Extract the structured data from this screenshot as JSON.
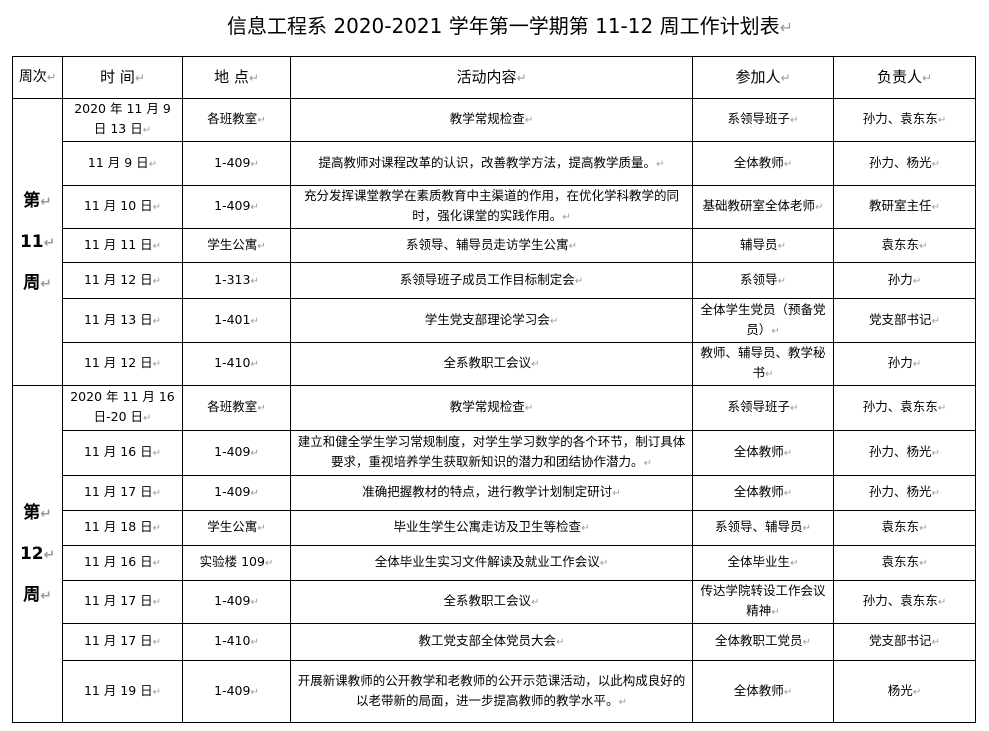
{
  "title": "信息工程系 2020-2021 学年第一学期第 11-12 周工作计划表",
  "headers": [
    "周次",
    "时 间",
    "地 点",
    "活动内容",
    "参加人",
    "负责人"
  ],
  "weeks": [
    {
      "label": [
        "第",
        "11",
        "周"
      ],
      "rows": [
        {
          "time": "2020 年 11 月 9 日 13 日",
          "place": "各班教室",
          "activity": "教学常规检查",
          "participants": "系领导班子",
          "owner": "孙力、袁东东"
        },
        {
          "time": "11 月 9 日",
          "place": "1-409",
          "activity": "提高教师对课程改革的认识，改善教学方法，提高教学质量。",
          "participants": "全体教师",
          "owner": "孙力、杨光"
        },
        {
          "time": "11 月 10 日",
          "place": "1-409",
          "activity": "充分发挥课堂教学在素质教育中主渠道的作用，在优化学科教学的同时，强化课堂的实践作用。",
          "participants": "基础教研室全体老师",
          "owner": "教研室主任"
        },
        {
          "time": "11 月 11 日",
          "place": "学生公寓",
          "activity": "系领导、辅导员走访学生公寓",
          "participants": "辅导员",
          "owner": "袁东东"
        },
        {
          "time": "11 月 12 日",
          "place": "1-313",
          "activity": "系领导班子成员工作目标制定会",
          "participants": "系领导",
          "owner": "孙力"
        },
        {
          "time": "11 月 13 日",
          "place": "1-401",
          "activity": "学生党支部理论学习会",
          "participants": "全体学生党员（预备党员）",
          "owner": "党支部书记"
        },
        {
          "time": "11 月 12 日",
          "place": "1-410",
          "activity": "全系教职工会议",
          "participants": "教师、辅导员、教学秘书",
          "owner": "孙力"
        }
      ]
    },
    {
      "label": [
        "第",
        "12",
        "周"
      ],
      "rows": [
        {
          "time": "2020 年 11 月 16 日-20 日",
          "place": "各班教室",
          "activity": "教学常规检查",
          "participants": "系领导班子",
          "owner": "孙力、袁东东"
        },
        {
          "time": "11 月 16 日",
          "place": "1-409",
          "activity": "建立和健全学生学习常规制度，对学生学习数学的各个环节，制订具体要求，重视培养学生获取新知识的潜力和团结协作潜力。",
          "participants": "全体教师",
          "owner": "孙力、杨光"
        },
        {
          "time": "11 月 17 日",
          "place": "1-409",
          "activity": "准确把握教材的特点，进行教学计划制定研讨",
          "participants": "全体教师",
          "owner": "孙力、杨光"
        },
        {
          "time": "11 月 18 日",
          "place": "学生公寓",
          "activity": "毕业生学生公寓走访及卫生等检查",
          "participants": "系领导、辅导员",
          "owner": "袁东东"
        },
        {
          "time": "11 月 16 日",
          "place": "实验楼 109",
          "activity": "全体毕业生实习文件解读及就业工作会议",
          "participants": "全体毕业生",
          "owner": "袁东东"
        },
        {
          "time": "11 月 17 日",
          "place": "1-409",
          "activity": "全系教职工会议",
          "participants": "传达学院转设工作会议精神",
          "owner": "孙力、袁东东"
        },
        {
          "time": "11 月 17 日",
          "place": "1-410",
          "activity": "教工党支部全体党员大会",
          "participants": "全体教职工党员",
          "owner": "党支部书记"
        },
        {
          "time": "11 月 19 日",
          "place": "1-409",
          "activity": "开展新课教师的公开教学和老教师的公开示范课活动，以此构成良好的以老带新的局面，进一步提高教师的教学水平。",
          "participants": "全体教师",
          "owner": "杨光"
        }
      ]
    }
  ]
}
